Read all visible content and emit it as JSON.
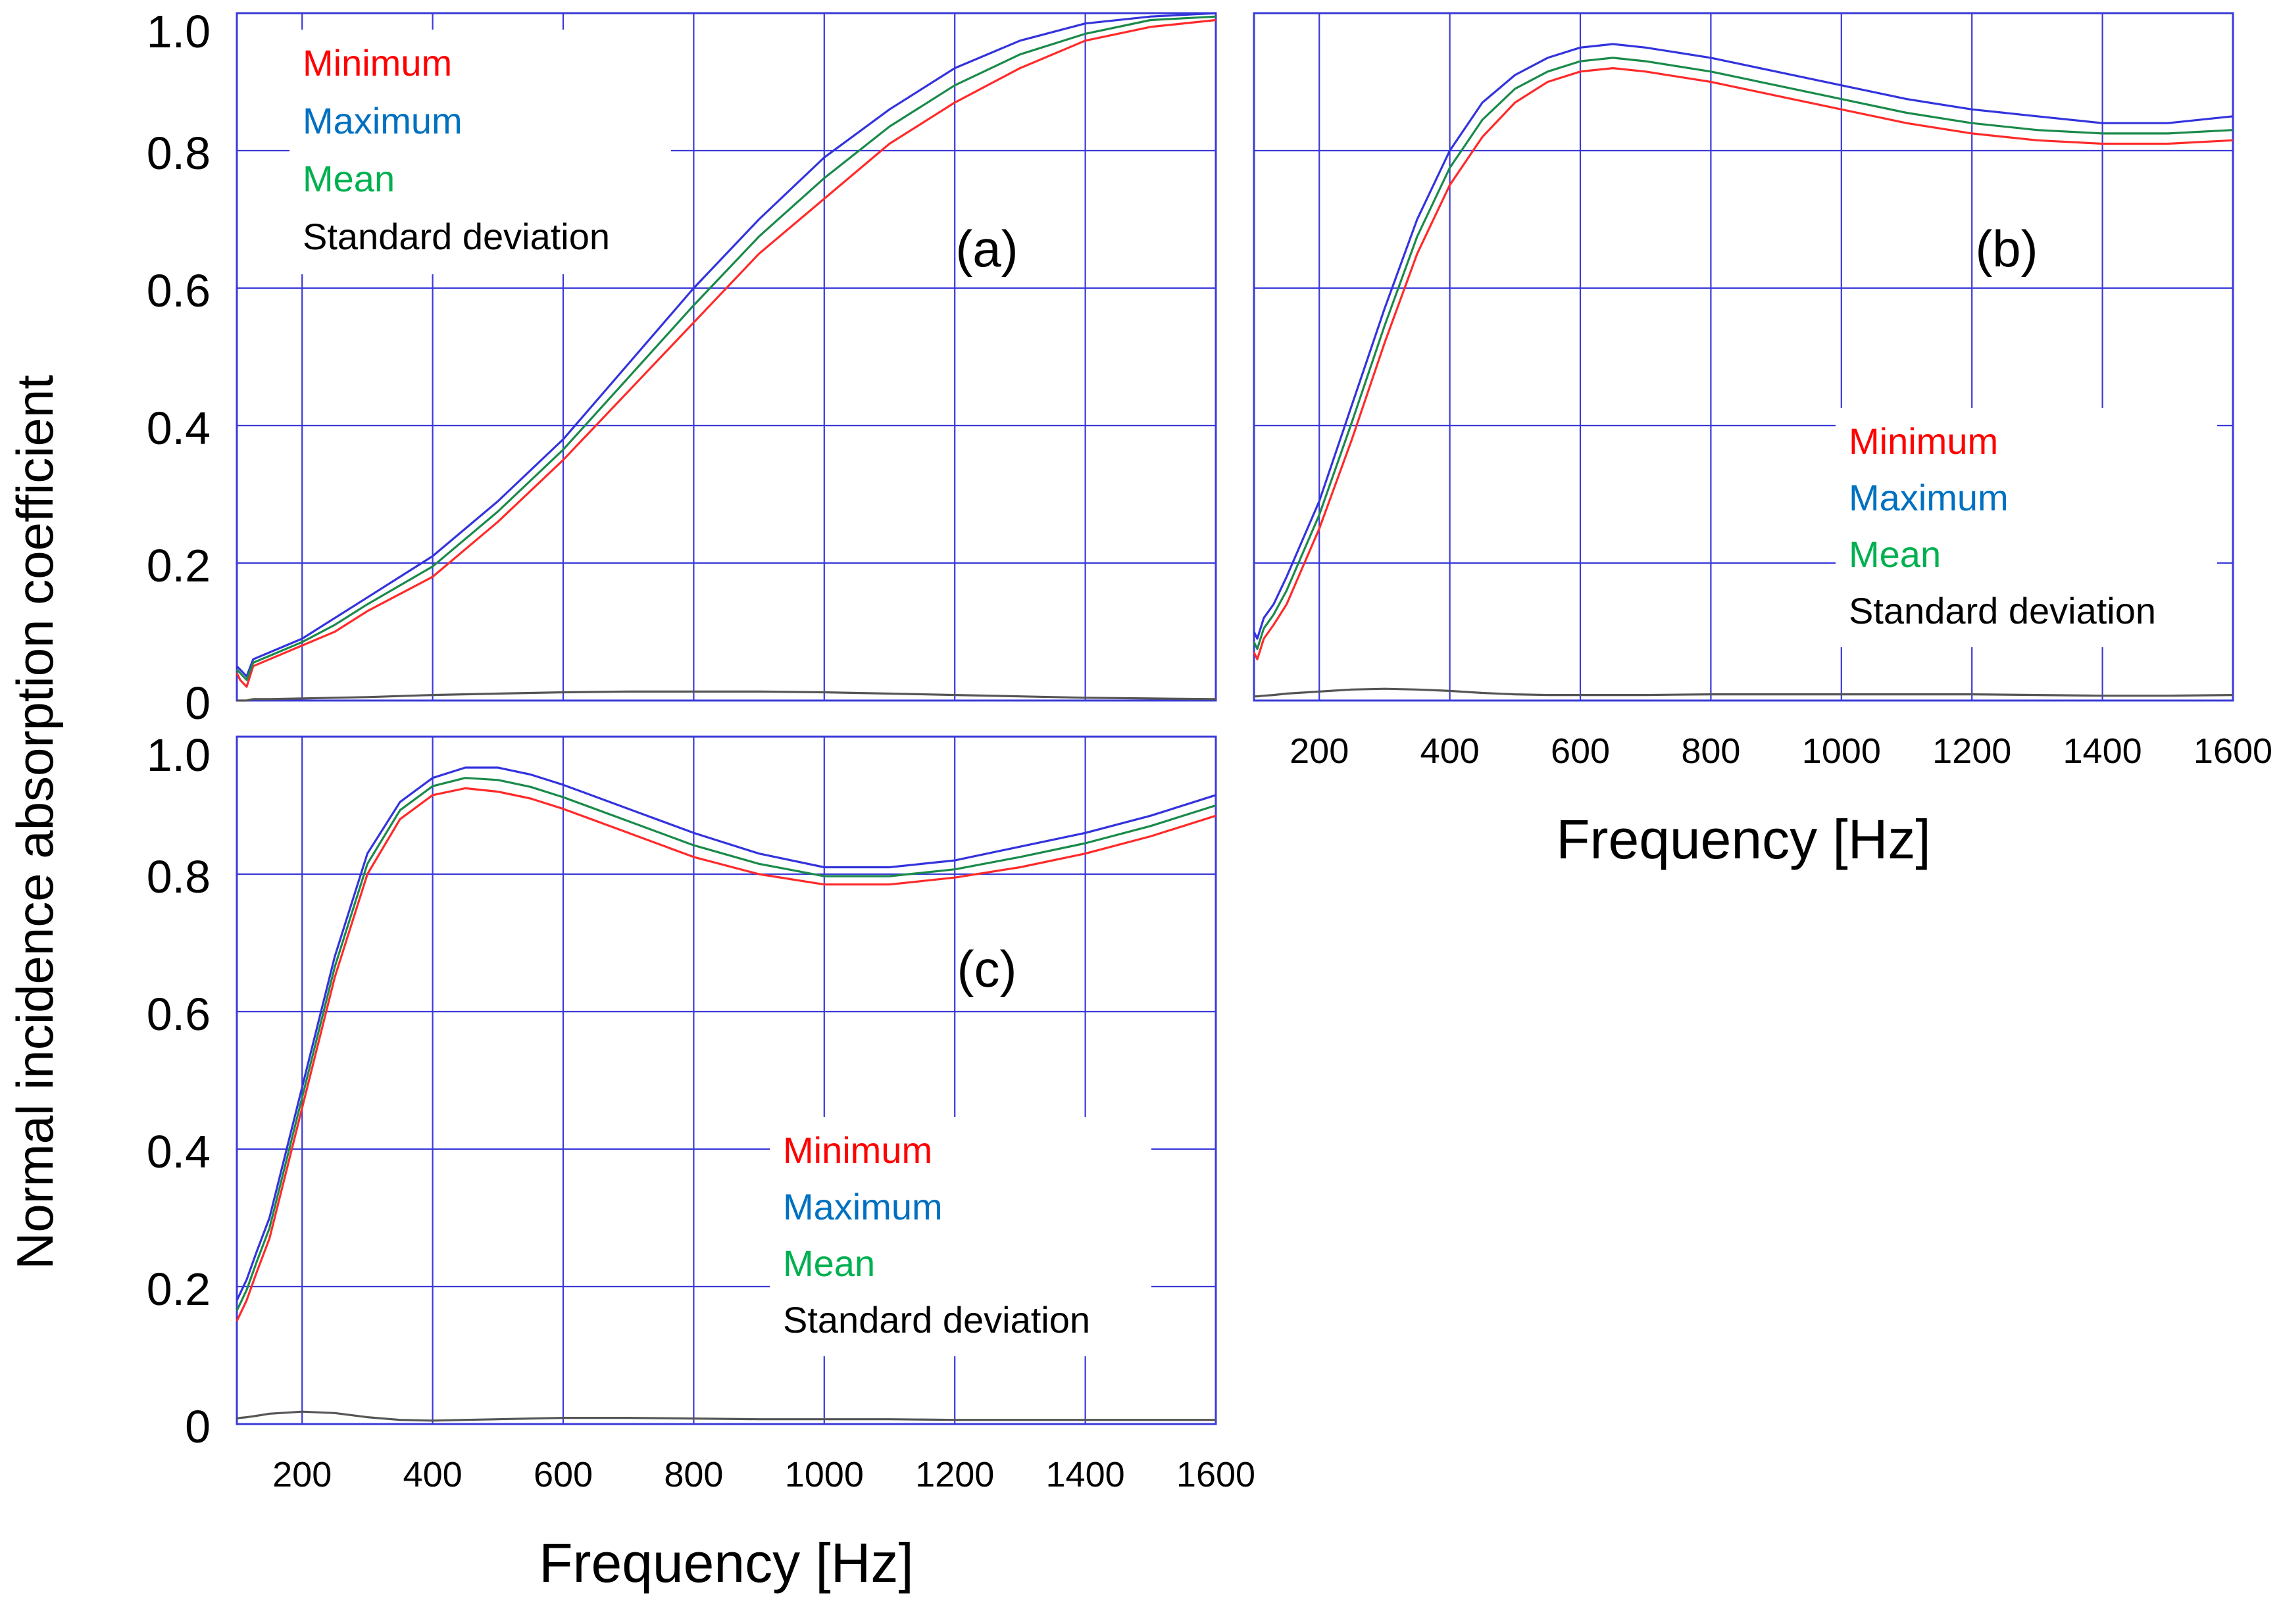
{
  "figure": {
    "ylabel": "Normal incidence absorption coefficient",
    "series_colors": {
      "Minimum": "#ff2a2a",
      "Maximum": "#3333dd",
      "Mean": "#1a8a4a",
      "Standard deviation": "#555555"
    },
    "legend_text_colors": {
      "Minimum": "#ff0000",
      "Maximum": "#0070c0",
      "Mean": "#00b050",
      "Standard deviation": "#000000"
    },
    "grid_color": "#3a3ad8"
  },
  "chart_data": [
    {
      "id": "a",
      "type": "line",
      "panel_label": "(a)",
      "xlabel": "",
      "ylabel": "Normal incidence absorption coefficient",
      "xlim": [
        100,
        1600
      ],
      "ylim": [
        0,
        1.0
      ],
      "xticks": [
        200,
        400,
        600,
        800,
        1000,
        1200,
        1400,
        1600
      ],
      "xtick_labels": [],
      "yticks": [
        0,
        0.2,
        0.4,
        0.6,
        0.8,
        1.0
      ],
      "ytick_labels": [
        "0",
        "0.2",
        "0.4",
        "0.6",
        "0.8",
        "1.0"
      ],
      "grid": true,
      "legend": [
        "Minimum",
        "Maximum",
        "Mean",
        "Standard deviation"
      ],
      "legend_position": "top-left",
      "x": [
        100,
        105,
        115,
        125,
        150,
        200,
        250,
        300,
        400,
        500,
        600,
        700,
        800,
        900,
        1000,
        1100,
        1200,
        1300,
        1400,
        1500,
        1600
      ],
      "series": [
        {
          "name": "Minimum",
          "values": [
            0.04,
            0.03,
            0.02,
            0.05,
            0.06,
            0.08,
            0.1,
            0.13,
            0.18,
            0.26,
            0.35,
            0.45,
            0.55,
            0.65,
            0.73,
            0.81,
            0.87,
            0.92,
            0.96,
            0.98,
            0.99
          ]
        },
        {
          "name": "Maximum",
          "values": [
            0.05,
            0.045,
            0.035,
            0.06,
            0.07,
            0.09,
            0.12,
            0.15,
            0.21,
            0.29,
            0.38,
            0.49,
            0.6,
            0.7,
            0.79,
            0.86,
            0.92,
            0.96,
            0.985,
            0.995,
            1.0
          ]
        },
        {
          "name": "Mean",
          "values": [
            0.045,
            0.04,
            0.03,
            0.055,
            0.065,
            0.085,
            0.11,
            0.14,
            0.195,
            0.275,
            0.365,
            0.47,
            0.575,
            0.675,
            0.76,
            0.835,
            0.895,
            0.94,
            0.97,
            0.99,
            0.995
          ]
        },
        {
          "name": "Standard deviation",
          "values": [
            0.0,
            0.0,
            0.0,
            0.002,
            0.002,
            0.003,
            0.004,
            0.005,
            0.008,
            0.01,
            0.012,
            0.013,
            0.013,
            0.013,
            0.012,
            0.01,
            0.008,
            0.006,
            0.004,
            0.003,
            0.002
          ]
        }
      ]
    },
    {
      "id": "b",
      "type": "line",
      "panel_label": "(b)",
      "xlabel": "Frequency [Hz]",
      "ylabel": "",
      "xlim": [
        100,
        1600
      ],
      "ylim": [
        0,
        1.0
      ],
      "xticks": [
        200,
        400,
        600,
        800,
        1000,
        1200,
        1400,
        1600
      ],
      "xtick_labels": [
        "200",
        "400",
        "600",
        "800",
        "1000",
        "1200",
        "1400",
        "1600"
      ],
      "yticks": [
        0,
        0.2,
        0.4,
        0.6,
        0.8,
        1.0
      ],
      "ytick_labels": [],
      "grid": true,
      "legend": [
        "Minimum",
        "Maximum",
        "Mean",
        "Standard deviation"
      ],
      "legend_position": "right",
      "x": [
        100,
        105,
        115,
        130,
        150,
        200,
        250,
        300,
        350,
        400,
        450,
        500,
        550,
        600,
        650,
        700,
        800,
        900,
        1000,
        1100,
        1200,
        1300,
        1400,
        1500,
        1600
      ],
      "series": [
        {
          "name": "Minimum",
          "values": [
            0.07,
            0.06,
            0.09,
            0.11,
            0.14,
            0.25,
            0.38,
            0.52,
            0.65,
            0.75,
            0.82,
            0.87,
            0.9,
            0.915,
            0.92,
            0.915,
            0.9,
            0.88,
            0.86,
            0.84,
            0.825,
            0.815,
            0.81,
            0.81,
            0.815
          ]
        },
        {
          "name": "Maximum",
          "values": [
            0.1,
            0.09,
            0.12,
            0.14,
            0.18,
            0.29,
            0.43,
            0.57,
            0.7,
            0.8,
            0.87,
            0.91,
            0.935,
            0.95,
            0.955,
            0.95,
            0.935,
            0.915,
            0.895,
            0.875,
            0.86,
            0.85,
            0.84,
            0.84,
            0.85
          ]
        },
        {
          "name": "Mean",
          "values": [
            0.085,
            0.075,
            0.105,
            0.125,
            0.16,
            0.27,
            0.405,
            0.545,
            0.675,
            0.775,
            0.845,
            0.89,
            0.915,
            0.93,
            0.935,
            0.93,
            0.915,
            0.895,
            0.875,
            0.855,
            0.84,
            0.83,
            0.825,
            0.825,
            0.83
          ]
        },
        {
          "name": "Standard deviation",
          "values": [
            0.006,
            0.006,
            0.007,
            0.008,
            0.01,
            0.013,
            0.016,
            0.017,
            0.016,
            0.014,
            0.011,
            0.009,
            0.008,
            0.008,
            0.008,
            0.008,
            0.009,
            0.009,
            0.009,
            0.009,
            0.009,
            0.008,
            0.007,
            0.007,
            0.008
          ]
        }
      ]
    },
    {
      "id": "c",
      "type": "line",
      "panel_label": "(c)",
      "xlabel": "Frequency [Hz]",
      "ylabel": "",
      "xlim": [
        100,
        1600
      ],
      "ylim": [
        0,
        1.0
      ],
      "xticks": [
        200,
        400,
        600,
        800,
        1000,
        1200,
        1400,
        1600
      ],
      "xtick_labels": [
        "200",
        "400",
        "600",
        "800",
        "1000",
        "1200",
        "1400",
        "1600"
      ],
      "yticks": [
        0,
        0.2,
        0.4,
        0.6,
        0.8,
        1.0
      ],
      "ytick_labels": [
        "0",
        "0.2",
        "0.4",
        "0.6",
        "0.8",
        "1.0"
      ],
      "grid": true,
      "legend": [
        "Minimum",
        "Maximum",
        "Mean",
        "Standard deviation"
      ],
      "legend_position": "bottom-center",
      "x": [
        100,
        105,
        115,
        130,
        150,
        200,
        250,
        300,
        350,
        400,
        450,
        500,
        550,
        600,
        700,
        800,
        900,
        1000,
        1100,
        1200,
        1300,
        1400,
        1500,
        1600
      ],
      "series": [
        {
          "name": "Minimum",
          "values": [
            0.15,
            0.16,
            0.18,
            0.22,
            0.27,
            0.46,
            0.65,
            0.8,
            0.88,
            0.915,
            0.925,
            0.92,
            0.91,
            0.895,
            0.86,
            0.825,
            0.8,
            0.785,
            0.785,
            0.795,
            0.81,
            0.83,
            0.855,
            0.885
          ]
        },
        {
          "name": "Maximum",
          "values": [
            0.18,
            0.19,
            0.21,
            0.25,
            0.3,
            0.49,
            0.68,
            0.83,
            0.905,
            0.94,
            0.955,
            0.955,
            0.945,
            0.93,
            0.895,
            0.86,
            0.83,
            0.81,
            0.81,
            0.82,
            0.84,
            0.86,
            0.885,
            0.915
          ]
        },
        {
          "name": "Mean",
          "values": [
            0.165,
            0.175,
            0.195,
            0.235,
            0.285,
            0.475,
            0.665,
            0.815,
            0.893,
            0.928,
            0.94,
            0.937,
            0.927,
            0.912,
            0.877,
            0.842,
            0.815,
            0.797,
            0.797,
            0.807,
            0.825,
            0.845,
            0.87,
            0.9
          ]
        },
        {
          "name": "Standard deviation",
          "values": [
            0.008,
            0.009,
            0.01,
            0.012,
            0.015,
            0.018,
            0.016,
            0.01,
            0.006,
            0.005,
            0.006,
            0.007,
            0.008,
            0.009,
            0.009,
            0.008,
            0.007,
            0.007,
            0.007,
            0.006,
            0.006,
            0.006,
            0.006,
            0.006
          ]
        }
      ]
    }
  ]
}
